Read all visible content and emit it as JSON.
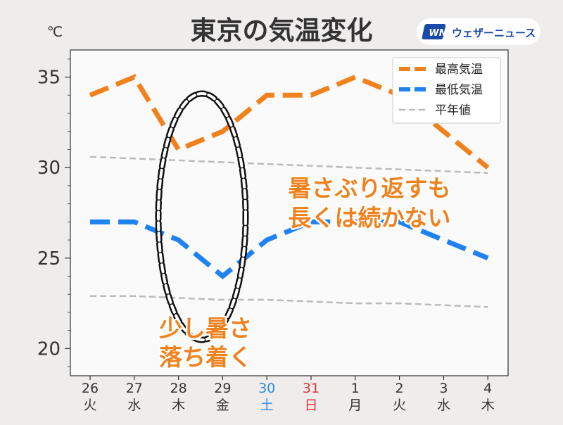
{
  "chart_data": {
    "type": "line",
    "title": "東京の気温変化",
    "unit": "℃",
    "ylim": [
      18.5,
      36.5
    ],
    "yticks": [
      20,
      25,
      30,
      35
    ],
    "grid": false,
    "legend_position": "top-right",
    "categories": [
      {
        "day": "26",
        "weekday": "火",
        "color": "#333333"
      },
      {
        "day": "27",
        "weekday": "水",
        "color": "#333333"
      },
      {
        "day": "28",
        "weekday": "木",
        "color": "#333333"
      },
      {
        "day": "29",
        "weekday": "金",
        "color": "#333333"
      },
      {
        "day": "30",
        "weekday": "土",
        "color": "#2a8ee0"
      },
      {
        "day": "31",
        "weekday": "日",
        "color": "#e0303c"
      },
      {
        "day": "1",
        "weekday": "月",
        "color": "#333333"
      },
      {
        "day": "2",
        "weekday": "火",
        "color": "#333333"
      },
      {
        "day": "3",
        "weekday": "水",
        "color": "#333333"
      },
      {
        "day": "4",
        "weekday": "木",
        "color": "#333333"
      }
    ],
    "series": [
      {
        "name": "最高気温",
        "color": "#f0821e",
        "style": "thick-dashed",
        "values": [
          34,
          35,
          31,
          32,
          34,
          34,
          35,
          34,
          32,
          30
        ]
      },
      {
        "name": "最低気温",
        "color": "#1e82f0",
        "style": "thick-dashed",
        "values": [
          27,
          27,
          26,
          24,
          26,
          27,
          27,
          27,
          26,
          25
        ]
      },
      {
        "name": "平年値",
        "color": "#bbbbbb",
        "style": "thin-dashed",
        "values": [
          30.6,
          30.5,
          30.4,
          30.3,
          30.2,
          30.1,
          30.0,
          29.9,
          29.8,
          29.7
        ]
      },
      {
        "color": "#bbbbbb",
        "style": "thin-dashed",
        "values": [
          22.9,
          22.9,
          22.8,
          22.7,
          22.7,
          22.6,
          22.5,
          22.5,
          22.4,
          22.3
        ]
      }
    ],
    "annotations": [
      {
        "lines": [
          "暑さぶり返すも",
          "長くは続かない"
        ],
        "color": "#f0821e"
      },
      {
        "lines": [
          "少し暑さ",
          "落ち着く"
        ],
        "color": "#f0821e"
      }
    ]
  },
  "brand": {
    "logo_mark": "WN",
    "name": "ウェザーニュース",
    "color": "#1a4aa8"
  }
}
